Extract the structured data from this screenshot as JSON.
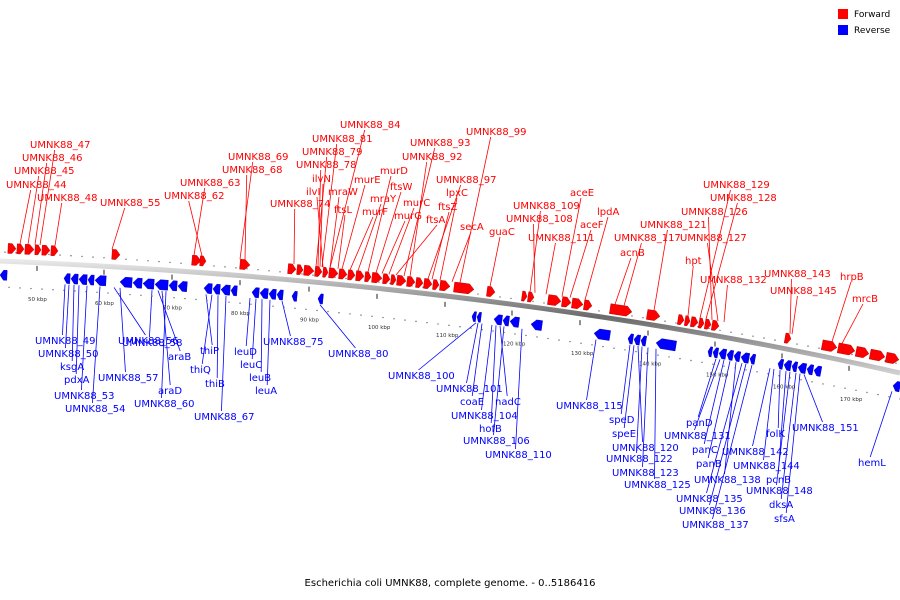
{
  "caption": "Escherichia coli UMNK88, complete genome. - 0..5186416",
  "legend": [
    {
      "label": "Forward",
      "color": "#ff0000"
    },
    {
      "label": "Reverse",
      "color": "#0000ff"
    }
  ],
  "colors": {
    "forward": "#ff0000",
    "reverse": "#0000ff",
    "backbone": "#808080"
  },
  "ticks": [
    "50 kbp",
    "60 kbp",
    "70 kbp",
    "80 kbp",
    "90 kbp",
    "100 kbp",
    "110 kbp",
    "120 kbp",
    "130 kbp",
    "140 kbp",
    "150 kbp",
    "160 kbp",
    "170 kbp"
  ],
  "forward_labels": [
    "UMNK88_47",
    "UMNK88_46",
    "UMNK88_45",
    "UMNK88_44",
    "UMNK88_48",
    "UMNK88_55",
    "UMNK88_63",
    "UMNK88_62",
    "UMNK88_69",
    "UMNK88_68",
    "UMNK88_74",
    "UMNK88_84",
    "UMNK88_81",
    "UMNK88_79",
    "UMNK88_78",
    "ilvN",
    "ilvI",
    "mraW",
    "ftsL",
    "murE",
    "murF",
    "mraY",
    "murD",
    "ftsW",
    "murG",
    "murC",
    "ftsA",
    "UMNK88_93",
    "UMNK88_92",
    "lpxC",
    "ftsZ",
    "UMNK88_97",
    "secA",
    "UMNK88_99",
    "guaC",
    "UMNK88_109",
    "UMNK88_108",
    "UMNK88_111",
    "aceE",
    "aceF",
    "lpdA",
    "acnB",
    "UMNK88_117",
    "UMNK88_121",
    "hpt",
    "UMNK88_129",
    "UMNK88_128",
    "UMNK88_126",
    "UMNK88_127",
    "UMNK88_132",
    "UMNK88_143",
    "UMNK88_145",
    "hrpB",
    "mrcB"
  ],
  "reverse_labels": [
    "UMNK88_49",
    "UMNK88_50",
    "ksgA",
    "pdxA",
    "UMNK88_53",
    "UMNK88_54",
    "UMNK88_56",
    "UMNK88_57",
    "UMNK88_58",
    "araB",
    "araD",
    "UMNK88_60",
    "thiP",
    "thiQ",
    "thiB",
    "UMNK88_67",
    "leuD",
    "leuC",
    "leuB",
    "leuA",
    "UMNK88_75",
    "UMNK88_80",
    "UMNK88_100",
    "UMNK88_101",
    "coaE",
    "nadC",
    "UMNK88_104",
    "hofB",
    "UMNK88_106",
    "UMNK88_110",
    "UMNK88_115",
    "speD",
    "speE",
    "UMNK88_120",
    "UMNK88_122",
    "UMNK88_123",
    "UMNK88_125",
    "panD",
    "UMNK88_131",
    "panC",
    "panB",
    "UMNK88_138",
    "UMNK88_135",
    "UMNK88_136",
    "UMNK88_137",
    "UMNK88_142",
    "UMNK88_144",
    "folK",
    "pcnB",
    "UMNK88_148",
    "dksA",
    "sfsA",
    "UMNK88_151",
    "hemL"
  ]
}
